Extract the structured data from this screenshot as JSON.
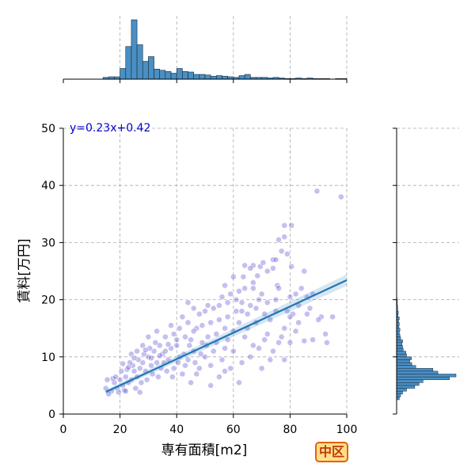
{
  "badge": {
    "label": "中区"
  },
  "chart_data": {
    "type": "scatter",
    "xlabel": "専有面積[m2]",
    "ylabel": "賃料[万円]",
    "xlim": [
      0,
      100
    ],
    "ylim": [
      0,
      50
    ],
    "xticks": [
      "0",
      "20",
      "40",
      "60",
      "80",
      "100"
    ],
    "yticks": [
      "0",
      "10",
      "20",
      "30",
      "40",
      "50"
    ],
    "grid": true,
    "annotation": "y=0.23x+0.42",
    "regression": {
      "slope": 0.23,
      "intercept": 0.42,
      "x_range": [
        15,
        100
      ]
    },
    "point_color": "#3a2fc8",
    "line_color": "#1f77b4",
    "bar_color": "#4a8fc4",
    "points": [
      [
        89.5,
        39.0
      ],
      [
        98.0,
        38.0
      ],
      [
        80.5,
        33.0
      ],
      [
        78.0,
        31.0
      ],
      [
        78.0,
        33.0
      ],
      [
        76.0,
        30.5
      ],
      [
        77.0,
        28.5
      ],
      [
        79.0,
        28.0
      ],
      [
        74.0,
        27.0
      ],
      [
        75.0,
        27.0
      ],
      [
        85.0,
        25.0
      ],
      [
        80.5,
        25.8
      ],
      [
        67.0,
        26.0
      ],
      [
        66.0,
        25.5
      ],
      [
        69.5,
        25.8
      ],
      [
        70.5,
        26.5
      ],
      [
        64.0,
        26.0
      ],
      [
        72.0,
        25.0
      ],
      [
        74.0,
        25.5
      ],
      [
        63.5,
        24.0
      ],
      [
        68.5,
        24.2
      ],
      [
        60.0,
        24.0
      ],
      [
        67.0,
        23.0
      ],
      [
        75.5,
        22.5
      ],
      [
        84.0,
        22.0
      ],
      [
        88.0,
        21.0
      ],
      [
        82.0,
        21.0
      ],
      [
        64.0,
        22.0
      ],
      [
        70.0,
        21.0
      ],
      [
        59.0,
        21.0
      ],
      [
        56.0,
        20.5
      ],
      [
        61.0,
        20.0
      ],
      [
        63.0,
        19.5
      ],
      [
        66.0,
        19.0
      ],
      [
        72.0,
        19.5
      ],
      [
        68.0,
        18.5
      ],
      [
        75.0,
        18.0
      ],
      [
        79.0,
        18.0
      ],
      [
        81.0,
        17.5
      ],
      [
        86.0,
        17.5
      ],
      [
        91.0,
        17.0
      ],
      [
        83.0,
        16.0
      ],
      [
        78.0,
        15.0
      ],
      [
        73.0,
        16.5
      ],
      [
        55.0,
        19.0
      ],
      [
        53.0,
        18.5
      ],
      [
        50.0,
        18.0
      ],
      [
        48.0,
        17.5
      ],
      [
        52.0,
        16.0
      ],
      [
        58.0,
        17.0
      ],
      [
        62.0,
        16.0
      ],
      [
        57.0,
        15.0
      ],
      [
        54.0,
        14.0
      ],
      [
        47.0,
        15.0
      ],
      [
        44.0,
        16.0
      ],
      [
        42.0,
        17.0
      ],
      [
        45.0,
        13.0
      ],
      [
        49.0,
        12.5
      ],
      [
        41.0,
        15.0
      ],
      [
        38.0,
        15.5
      ],
      [
        36.0,
        13.5
      ],
      [
        60.0,
        14.5
      ],
      [
        64.0,
        13.5
      ],
      [
        67.0,
        12.0
      ],
      [
        71.0,
        13.0
      ],
      [
        76.0,
        12.5
      ],
      [
        80.0,
        12.5
      ],
      [
        85.0,
        12.8
      ],
      [
        74.0,
        11.0
      ],
      [
        69.0,
        11.5
      ],
      [
        66.0,
        10.0
      ],
      [
        73.0,
        9.5
      ],
      [
        78.0,
        9.5
      ],
      [
        63.0,
        9.0
      ],
      [
        59.0,
        8.0
      ],
      [
        70.0,
        8.0
      ],
      [
        60.0,
        11.0
      ],
      [
        57.0,
        11.5
      ],
      [
        56.0,
        9.5
      ],
      [
        53.0,
        11.0
      ],
      [
        52.0,
        8.5
      ],
      [
        50.0,
        10.0
      ],
      [
        48.0,
        8.0
      ],
      [
        47.0,
        7.0
      ],
      [
        52.0,
        5.0
      ],
      [
        57.0,
        7.5
      ],
      [
        62.0,
        5.5
      ],
      [
        55.0,
        6.5
      ],
      [
        90.0,
        16.5
      ],
      [
        87.0,
        18.5
      ],
      [
        92.5,
        14.0
      ],
      [
        80.0,
        17.0
      ],
      [
        77.0,
        13.5
      ],
      [
        71.0,
        17.5
      ],
      [
        65.0,
        17.5
      ],
      [
        61.0,
        18.0
      ],
      [
        58.0,
        13.0
      ],
      [
        46.0,
        11.0
      ],
      [
        43.0,
        13.5
      ],
      [
        40.0,
        12.0
      ],
      [
        44.0,
        9.5
      ],
      [
        38.0,
        11.5
      ],
      [
        37.0,
        9.5
      ],
      [
        39.0,
        8.0
      ],
      [
        42.0,
        7.0
      ],
      [
        45.0,
        5.5
      ],
      [
        34.0,
        12.0
      ],
      [
        35.0,
        10.5
      ],
      [
        33.0,
        9.0
      ],
      [
        32.0,
        11.0
      ],
      [
        30.0,
        10.0
      ],
      [
        31.0,
        8.5
      ],
      [
        29.0,
        7.5
      ],
      [
        28.0,
        9.0
      ],
      [
        27.0,
        8.0
      ],
      [
        26.0,
        6.5
      ],
      [
        25.0,
        7.5
      ],
      [
        24.0,
        6.0
      ],
      [
        23.0,
        5.5
      ],
      [
        22.0,
        6.5
      ],
      [
        21.0,
        5.0
      ],
      [
        20.0,
        6.0
      ],
      [
        19.0,
        4.5
      ],
      [
        18.0,
        5.5
      ],
      [
        17.0,
        4.0
      ],
      [
        16.0,
        3.5
      ],
      [
        15.0,
        4.5
      ],
      [
        15.5,
        6.0
      ],
      [
        17.5,
        6.2
      ],
      [
        19.5,
        3.8
      ],
      [
        21.5,
        4.2
      ],
      [
        22.5,
        7.8
      ],
      [
        24.5,
        8.5
      ],
      [
        26.5,
        9.5
      ],
      [
        28.5,
        10.5
      ],
      [
        30.5,
        11.5
      ],
      [
        32.5,
        12.5
      ],
      [
        34.5,
        8.0
      ],
      [
        36.5,
        7.5
      ],
      [
        38.5,
        6.5
      ],
      [
        40.5,
        9.0
      ],
      [
        42.5,
        10.5
      ],
      [
        44.5,
        12.0
      ],
      [
        46.5,
        9.0
      ],
      [
        48.5,
        10.5
      ],
      [
        50.5,
        12.0
      ],
      [
        27.5,
        5.5
      ],
      [
        29.5,
        6.0
      ],
      [
        31.5,
        7.0
      ],
      [
        33.5,
        6.5
      ],
      [
        35.5,
        9.0
      ],
      [
        23.5,
        9.0
      ],
      [
        25.5,
        4.5
      ],
      [
        20.5,
        7.5
      ],
      [
        18.5,
        6.5
      ],
      [
        26.0,
        11.0
      ],
      [
        28.0,
        12.0
      ],
      [
        30.0,
        13.5
      ],
      [
        33.0,
        14.5
      ],
      [
        36.0,
        11.0
      ],
      [
        39.0,
        14.0
      ],
      [
        41.0,
        10.0
      ],
      [
        43.0,
        8.5
      ],
      [
        24.0,
        10.5
      ],
      [
        22.0,
        4.0
      ],
      [
        27.0,
        3.8
      ],
      [
        25.0,
        9.8
      ],
      [
        23.0,
        8.2
      ],
      [
        21.0,
        8.8
      ],
      [
        29.0,
        11.2
      ],
      [
        31.0,
        9.8
      ],
      [
        34.0,
        10.2
      ],
      [
        37.0,
        12.2
      ],
      [
        40.0,
        13.0
      ],
      [
        46.0,
        14.5
      ],
      [
        49.0,
        15.5
      ],
      [
        51.0,
        13.5
      ],
      [
        54.0,
        12.5
      ],
      [
        55.0,
        16.5
      ],
      [
        58.0,
        19.5
      ],
      [
        62.0,
        21.5
      ],
      [
        65.0,
        15.0
      ],
      [
        68.0,
        16.0
      ],
      [
        72.0,
        14.0
      ],
      [
        75.0,
        20.0
      ],
      [
        83.0,
        19.0
      ],
      [
        86.0,
        20.5
      ],
      [
        95.0,
        17.0
      ],
      [
        93.0,
        12.5
      ],
      [
        88.0,
        13.0
      ],
      [
        82.0,
        14.5
      ],
      [
        76.0,
        22.0
      ],
      [
        80.0,
        20.5
      ],
      [
        69.0,
        20.0
      ],
      [
        63.0,
        18.0
      ],
      [
        46.0,
        18.5
      ],
      [
        44.0,
        19.5
      ],
      [
        51.0,
        19.0
      ],
      [
        57.0,
        22.5
      ],
      [
        67.0,
        22.0
      ]
    ],
    "top_hist": {
      "bin_width": 2,
      "bins": [
        [
          14,
          3
        ],
        [
          16,
          4
        ],
        [
          18,
          4
        ],
        [
          20,
          18
        ],
        [
          22,
          55
        ],
        [
          24,
          100
        ],
        [
          26,
          58
        ],
        [
          28,
          30
        ],
        [
          30,
          38
        ],
        [
          32,
          17
        ],
        [
          34,
          15
        ],
        [
          36,
          13
        ],
        [
          38,
          10
        ],
        [
          40,
          18
        ],
        [
          42,
          13
        ],
        [
          44,
          12
        ],
        [
          46,
          8
        ],
        [
          48,
          8
        ],
        [
          50,
          7
        ],
        [
          52,
          5
        ],
        [
          54,
          6
        ],
        [
          56,
          5
        ],
        [
          58,
          4
        ],
        [
          60,
          3
        ],
        [
          62,
          6
        ],
        [
          64,
          8
        ],
        [
          66,
          3
        ],
        [
          68,
          3
        ],
        [
          70,
          3
        ],
        [
          72,
          2
        ],
        [
          74,
          3
        ],
        [
          76,
          2
        ],
        [
          78,
          1
        ],
        [
          80,
          1
        ],
        [
          82,
          2
        ],
        [
          84,
          1
        ],
        [
          86,
          2
        ],
        [
          88,
          1
        ],
        [
          90,
          1
        ],
        [
          92,
          1
        ],
        [
          96,
          1
        ],
        [
          98,
          1
        ]
      ]
    },
    "right_hist": {
      "bin_width": 0.5,
      "bins": [
        [
          2.5,
          8
        ],
        [
          3.0,
          12
        ],
        [
          3.5,
          18
        ],
        [
          4.0,
          30
        ],
        [
          4.5,
          55
        ],
        [
          5.0,
          68
        ],
        [
          5.5,
          80
        ],
        [
          6.0,
          160
        ],
        [
          6.5,
          180
        ],
        [
          7.0,
          125
        ],
        [
          7.5,
          110
        ],
        [
          8.0,
          58
        ],
        [
          8.5,
          46
        ],
        [
          9.0,
          40
        ],
        [
          9.5,
          45
        ],
        [
          10.0,
          30
        ],
        [
          10.5,
          28
        ],
        [
          11.0,
          20
        ],
        [
          11.5,
          18
        ],
        [
          12.0,
          16
        ],
        [
          12.5,
          18
        ],
        [
          13.0,
          12
        ],
        [
          13.5,
          10
        ],
        [
          14.0,
          8
        ],
        [
          14.5,
          10
        ],
        [
          15.0,
          7
        ],
        [
          15.5,
          8
        ],
        [
          16.0,
          6
        ],
        [
          16.5,
          8
        ],
        [
          17.0,
          4
        ],
        [
          17.5,
          5
        ],
        [
          18.0,
          3
        ],
        [
          18.5,
          3
        ],
        [
          19.0,
          2
        ],
        [
          19.5,
          2
        ],
        [
          20.0,
          1
        ]
      ]
    }
  }
}
